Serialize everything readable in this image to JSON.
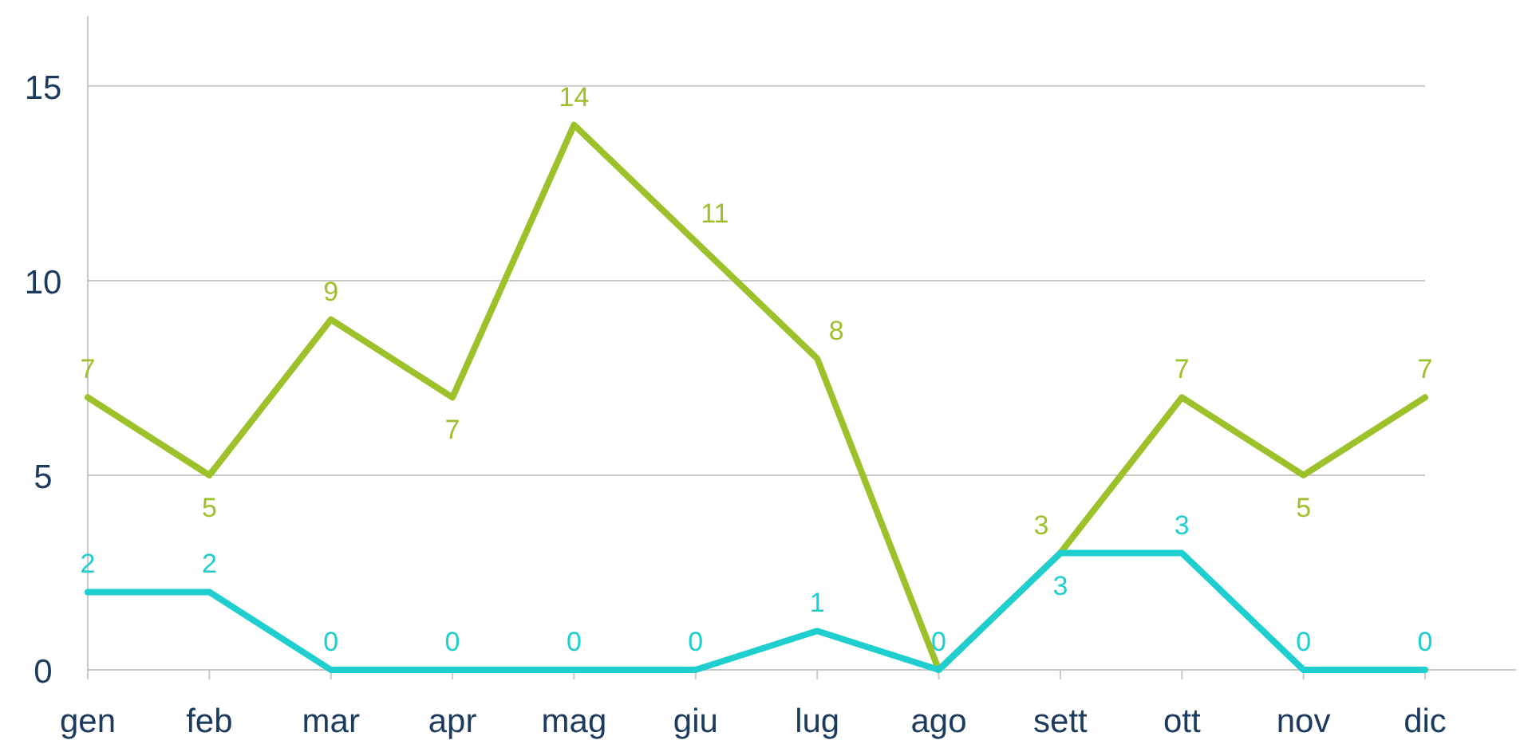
{
  "chart_data": {
    "type": "line",
    "categories": [
      "gen",
      "feb",
      "mar",
      "apr",
      "mag",
      "giu",
      "lug",
      "ago",
      "sett",
      "ott",
      "nov",
      "dic"
    ],
    "series": [
      {
        "color": "#9dc12b",
        "values": [
          7,
          5,
          9,
          7,
          14,
          11,
          8,
          0,
          3,
          7,
          5,
          7
        ],
        "value_labels": [
          "7",
          "5",
          "9",
          "7",
          "14",
          "11",
          "8",
          null,
          "3",
          "7",
          "5",
          "7"
        ]
      },
      {
        "color": "#1fcfd0",
        "values": [
          2,
          2,
          0,
          0,
          0,
          0,
          1,
          0,
          3,
          3,
          0,
          0
        ],
        "value_labels": [
          "2",
          "2",
          "0",
          "0",
          "0",
          "0",
          "1",
          "0",
          "3",
          "3",
          "0",
          "0"
        ]
      }
    ],
    "ylim": [
      0,
      16.8
    ],
    "yticks": [
      0,
      5,
      10,
      15
    ],
    "grid": "y",
    "marker": "none",
    "line_style": "solid"
  }
}
